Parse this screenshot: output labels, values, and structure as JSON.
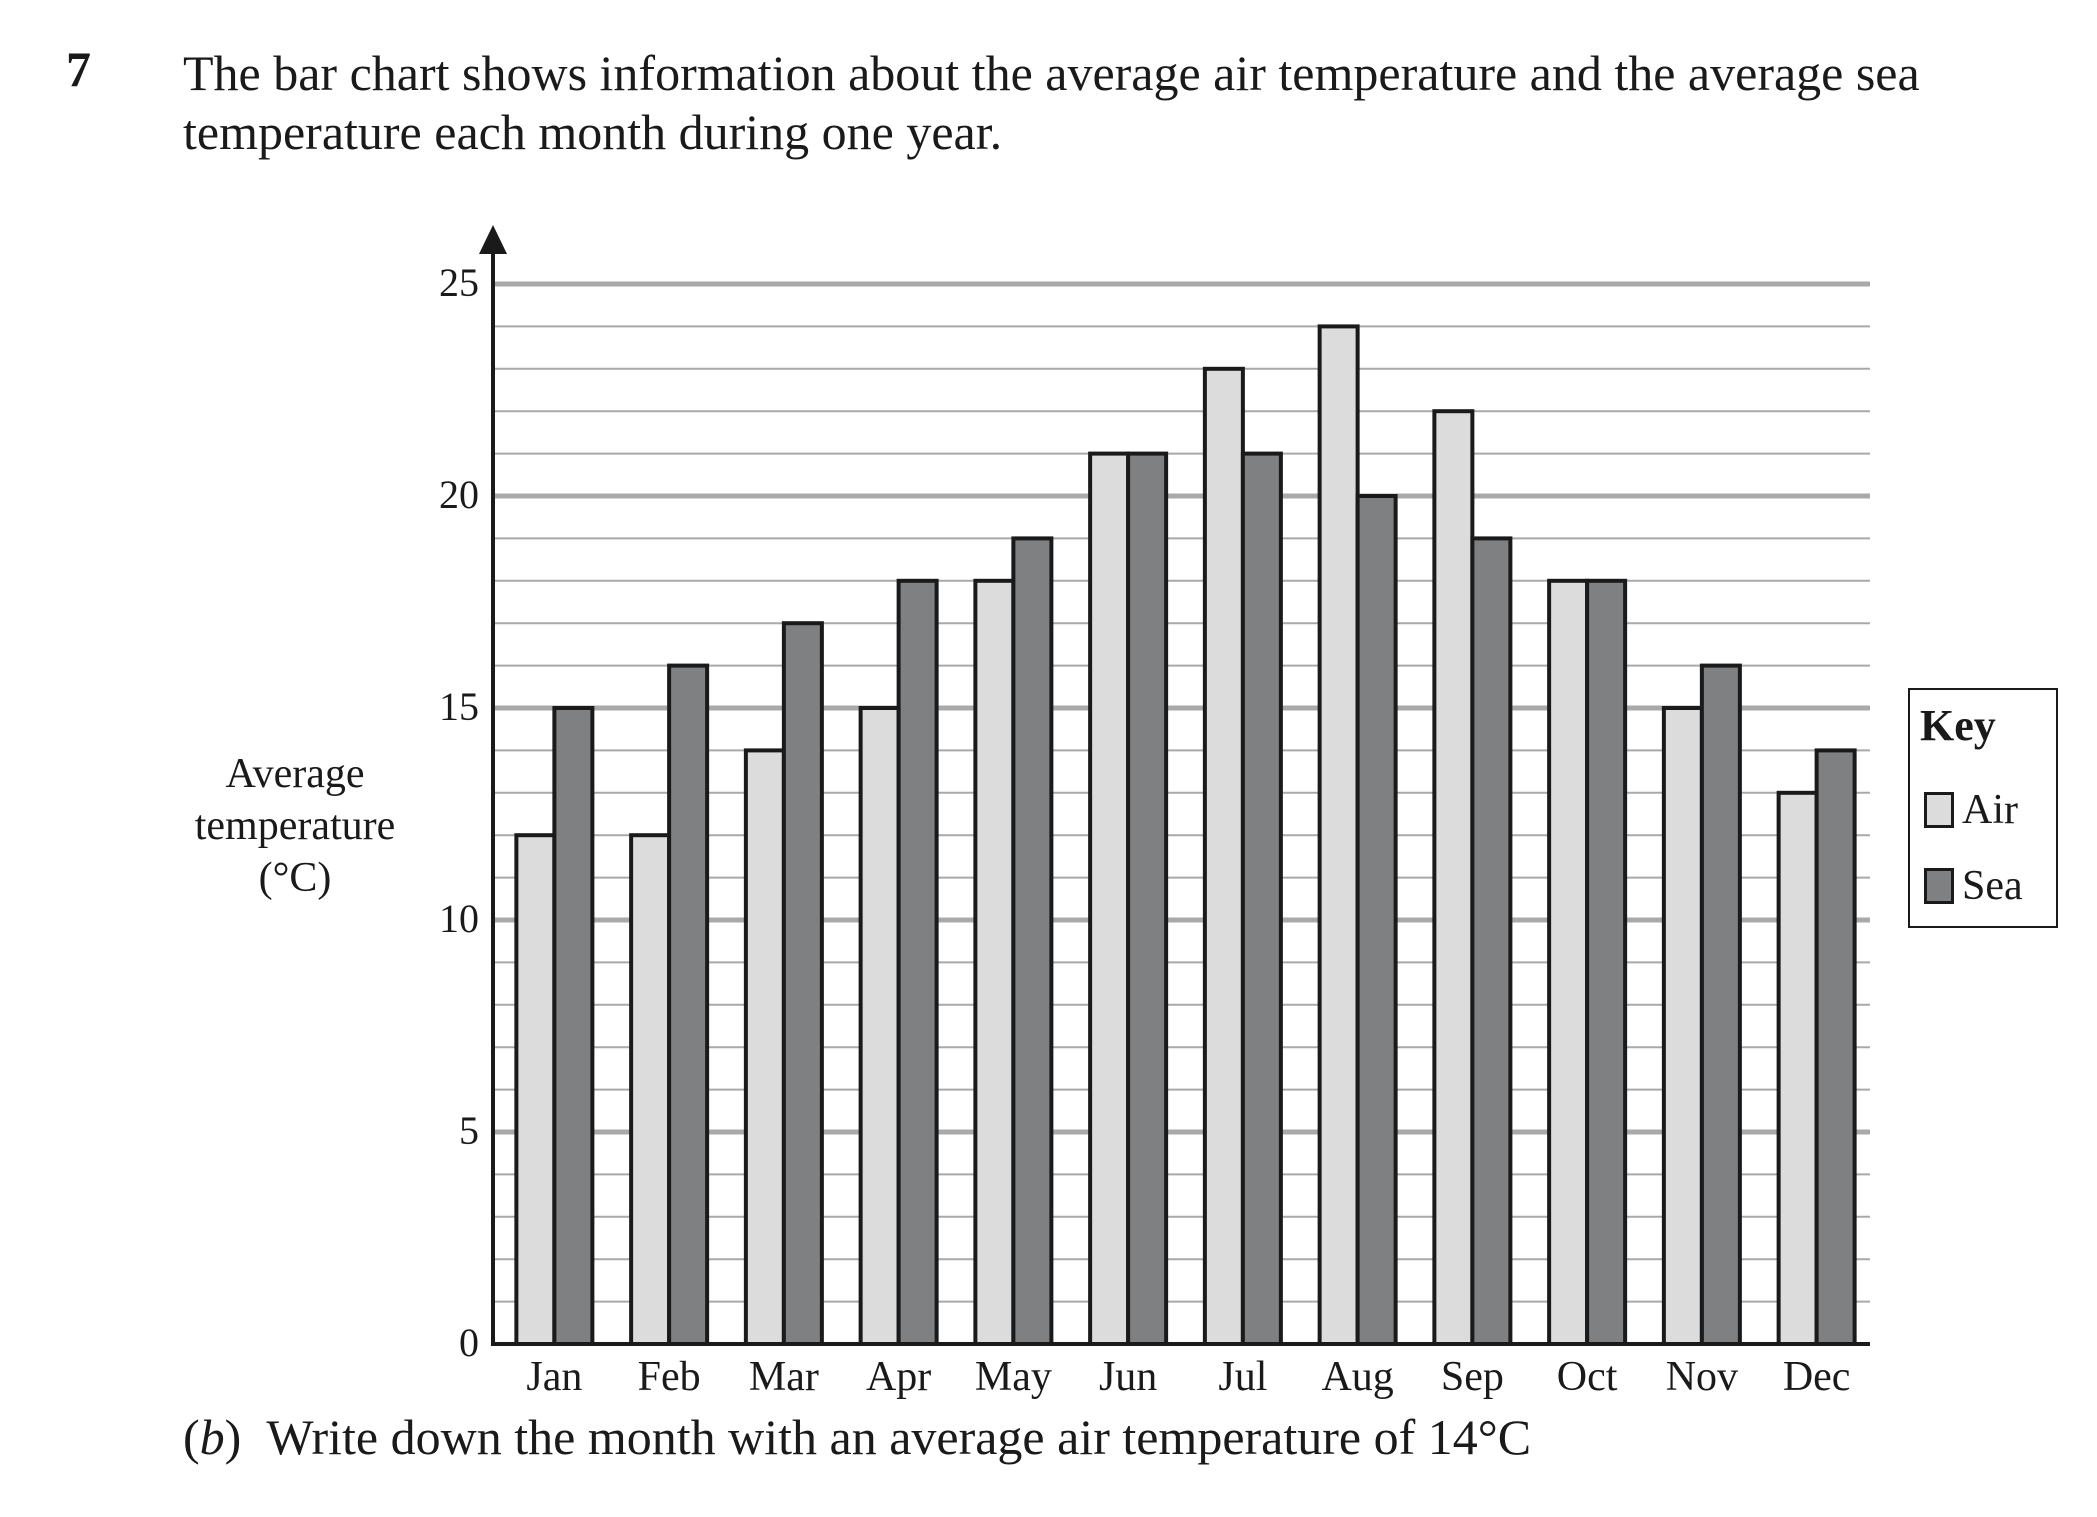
{
  "question": {
    "number": "7",
    "text_line1": "The bar chart shows information about the average air temperature and the average sea",
    "text_line2": "temperature each month during one year."
  },
  "part_b": {
    "open_paren": "(",
    "letter": "b",
    "close_paren": ")",
    "text": "Write down the month with an average air temperature of 14°C"
  },
  "key": {
    "title": "Key",
    "items": [
      {
        "label": "Air",
        "color": "#dcdcdc"
      },
      {
        "label": "Sea",
        "color": "#7f8082"
      }
    ]
  },
  "chart_data": {
    "type": "bar",
    "title": "",
    "ylabel_lines": [
      "Average",
      "temperature",
      "(°C)"
    ],
    "xlabel": "",
    "categories": [
      "Jan",
      "Feb",
      "Mar",
      "Apr",
      "May",
      "Jun",
      "Jul",
      "Aug",
      "Sep",
      "Oct",
      "Nov",
      "Dec"
    ],
    "series": [
      {
        "name": "Air",
        "values": [
          12,
          12,
          14,
          15,
          18,
          21,
          23,
          24,
          22,
          18,
          15,
          13
        ],
        "color": "#dcdcdc"
      },
      {
        "name": "Sea",
        "values": [
          15,
          16,
          17,
          18,
          19,
          21,
          21,
          20,
          19,
          18,
          16,
          14
        ],
        "color": "#7f8082"
      }
    ],
    "ylim": [
      0,
      25
    ],
    "yticks": [
      "0",
      "5",
      "10",
      "15",
      "20",
      "25"
    ],
    "minor_grid_step": 1,
    "major_grid_step": 5,
    "grid": true,
    "legend_position": "right"
  }
}
